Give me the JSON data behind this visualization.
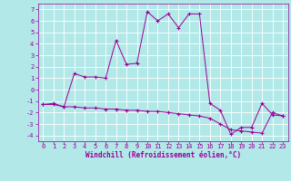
{
  "xlabel": "Windchill (Refroidissement éolien,°C)",
  "background_color": "#b2e8e8",
  "grid_color": "#ffffff",
  "line_color": "#990099",
  "x_hours": [
    0,
    1,
    2,
    3,
    4,
    5,
    6,
    7,
    8,
    9,
    10,
    11,
    12,
    13,
    14,
    15,
    16,
    17,
    18,
    19,
    20,
    21,
    22,
    23
  ],
  "temp_values": [
    -1.3,
    -1.2,
    -1.5,
    1.4,
    1.1,
    1.1,
    1.0,
    4.3,
    2.2,
    2.3,
    6.8,
    6.0,
    6.6,
    5.4,
    6.6,
    6.6,
    -1.2,
    -1.8,
    -3.9,
    -3.3,
    -3.3,
    -1.2,
    -2.2,
    -2.3
  ],
  "windchill_values": [
    -1.3,
    -1.3,
    -1.5,
    -1.5,
    -1.6,
    -1.6,
    -1.7,
    -1.7,
    -1.8,
    -1.8,
    -1.9,
    -1.9,
    -2.0,
    -2.1,
    -2.2,
    -2.3,
    -2.5,
    -3.0,
    -3.5,
    -3.6,
    -3.7,
    -3.8,
    -2.0,
    -2.3
  ],
  "ylim": [
    -4.5,
    7.5
  ],
  "yticks": [
    -4,
    -3,
    -2,
    -1,
    0,
    1,
    2,
    3,
    4,
    5,
    6,
    7
  ],
  "xlim": [
    -0.5,
    23.5
  ],
  "xticks": [
    0,
    1,
    2,
    3,
    4,
    5,
    6,
    7,
    8,
    9,
    10,
    11,
    12,
    13,
    14,
    15,
    16,
    17,
    18,
    19,
    20,
    21,
    22,
    23
  ]
}
